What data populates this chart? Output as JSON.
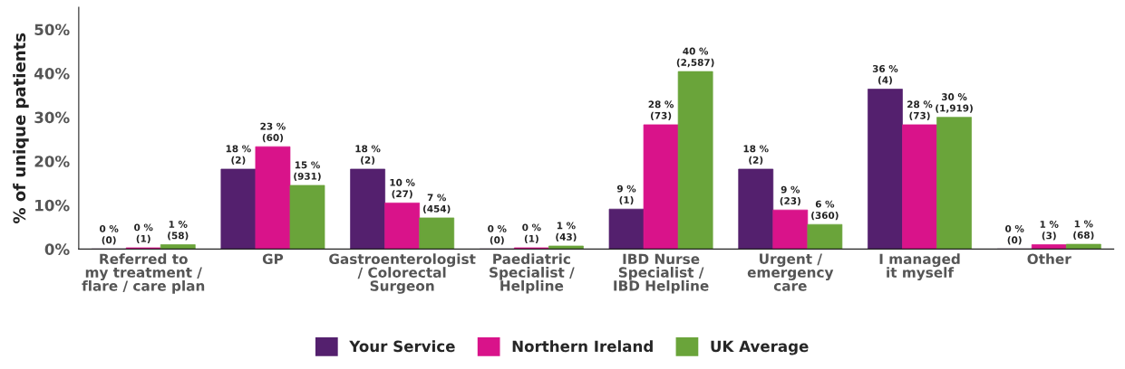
{
  "chart_data": {
    "type": "bar",
    "ylabel": "% of unique patients",
    "categories": [
      "Referred to\nmy treatment /\nflare / care plan",
      "GP",
      "Gastroenterologist\n/ Colorectal\nSurgeon",
      "Paediatric\nSpecialist /\nHelpline",
      "IBD Nurse\nSpecialist /\nIBD Helpline",
      "Urgent /\nemergency\ncare",
      "I managed\nit myself",
      "Other"
    ],
    "series": [
      {
        "name": "Your Service",
        "color": "#54206e",
        "values": [
          0,
          18.2,
          18.2,
          0,
          9.1,
          18.2,
          36.4,
          0
        ],
        "value_labels": [
          "0 %\n(0)",
          "18 %\n(2)",
          "18 %\n(2)",
          "0 %\n(0)",
          "9 %\n(1)",
          "18 %\n(2)",
          "36 %\n(4)",
          "0 %\n(0)"
        ]
      },
      {
        "name": "Northern Ireland",
        "color": "#d9138a",
        "values": [
          0.3,
          23.3,
          10.5,
          0.3,
          28.3,
          8.9,
          28.3,
          1.0
        ],
        "value_labels": [
          "0 %\n(1)",
          "23 %\n(60)",
          "10 %\n(27)",
          "0 %\n(1)",
          "28 %\n(73)",
          "9 %\n(23)",
          "28 %\n(73)",
          "1 %\n(3)"
        ]
      },
      {
        "name": "UK Average",
        "color": "#6aa43a",
        "values": [
          1.0,
          14.5,
          7.1,
          0.7,
          40.4,
          5.6,
          30.0,
          1.1
        ],
        "value_labels": [
          "1 %\n(58)",
          "15 %\n(931)",
          "7 %\n(454)",
          "1 %\n(43)",
          "40 %\n(2,587)",
          "6 %\n(360)",
          "30 %\n(1,919)",
          "1 %\n(68)"
        ]
      }
    ],
    "ylim": [
      0,
      55
    ],
    "yticks": [
      {
        "value": 0,
        "label": "0%"
      },
      {
        "value": 10,
        "label": "10%"
      },
      {
        "value": 20,
        "label": "20%"
      },
      {
        "value": 30,
        "label": "30%"
      },
      {
        "value": 40,
        "label": "40%"
      },
      {
        "value": 50,
        "label": "50%"
      }
    ],
    "grid": false,
    "legend": "bottom"
  }
}
